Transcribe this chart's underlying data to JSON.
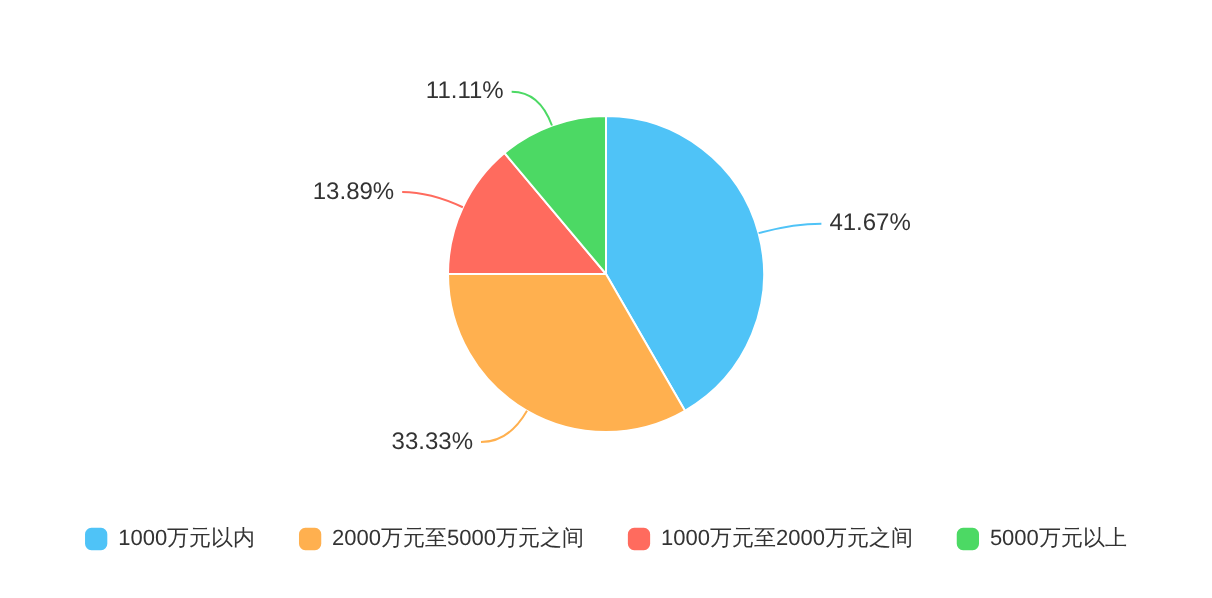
{
  "chart_data": {
    "type": "pie",
    "categories": [
      "1000万元以内",
      "2000万元至5000万元之间",
      "1000万元至2000万元之间",
      "5000万元以上"
    ],
    "values": [
      41.67,
      33.33,
      13.89,
      11.11
    ],
    "colors": [
      "#4fc3f7",
      "#ffb04f",
      "#ff6b5e",
      "#4cd964"
    ],
    "value_labels": [
      "41.67%",
      "33.33%",
      "13.89%",
      "11.11%"
    ],
    "legend": "bottom"
  }
}
